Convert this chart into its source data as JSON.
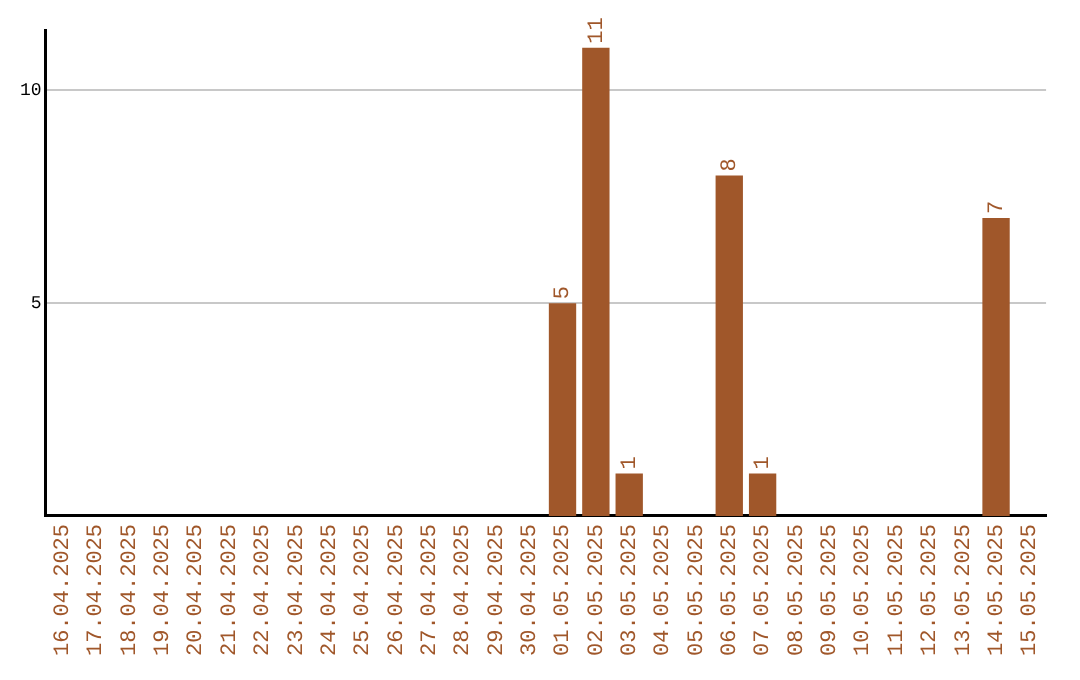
{
  "chart_data": {
    "type": "bar",
    "categories": [
      "16.04.2025",
      "17.04.2025",
      "18.04.2025",
      "19.04.2025",
      "20.04.2025",
      "21.04.2025",
      "22.04.2025",
      "23.04.2025",
      "24.04.2025",
      "25.04.2025",
      "26.04.2025",
      "27.04.2025",
      "28.04.2025",
      "29.04.2025",
      "30.04.2025",
      "01.05.2025",
      "02.05.2025",
      "03.05.2025",
      "04.05.2025",
      "05.05.2025",
      "06.05.2025",
      "07.05.2025",
      "08.05.2025",
      "09.05.2025",
      "10.05.2025",
      "11.05.2025",
      "12.05.2025",
      "13.05.2025",
      "14.05.2025",
      "15.05.2025"
    ],
    "values": [
      0,
      0,
      0,
      0,
      0,
      0,
      0,
      0,
      0,
      0,
      0,
      0,
      0,
      0,
      0,
      5,
      11,
      1,
      0,
      0,
      8,
      1,
      0,
      0,
      0,
      0,
      0,
      0,
      7,
      0
    ],
    "value_labels": [
      null,
      null,
      null,
      null,
      null,
      null,
      null,
      null,
      null,
      null,
      null,
      null,
      null,
      null,
      null,
      "5",
      "11",
      "1",
      null,
      null,
      "8",
      "1",
      null,
      null,
      null,
      null,
      null,
      null,
      "7",
      null
    ],
    "color": "#a0572a",
    "ylim": [
      0,
      11.4
    ],
    "yticks": [
      5,
      10
    ],
    "grid": "y",
    "legend": false
  }
}
